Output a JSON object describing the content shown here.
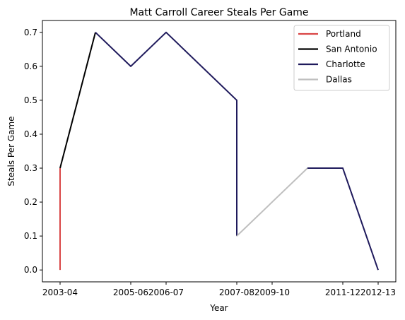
{
  "chart_data": {
    "type": "line",
    "title": "Matt Carroll  Career Steals Per Game",
    "xlabel": "Year",
    "ylabel": "Steals Per Game",
    "x_tick_labels": [
      "2003-04",
      "2005-06",
      "2006-07",
      "2007-08",
      "2009-10",
      "2011-12",
      "2012-13"
    ],
    "x_tick_positions": [
      0,
      2,
      3,
      5,
      6,
      8,
      9
    ],
    "y_ticks": [
      0.0,
      0.1,
      0.2,
      0.3,
      0.4,
      0.5,
      0.6,
      0.7
    ],
    "y_tick_labels": [
      "0.0",
      "0.1",
      "0.2",
      "0.3",
      "0.4",
      "0.5",
      "0.6",
      "0.7"
    ],
    "xlim": [
      -0.5,
      9.5
    ],
    "ylim": [
      -0.035,
      0.735
    ],
    "grid": false,
    "legend_position": "top-right",
    "series": [
      {
        "name": "Portland",
        "color": "#d94545",
        "points": [
          [
            0,
            0.0
          ],
          [
            0,
            0.3
          ]
        ]
      },
      {
        "name": "San Antonio",
        "color": "#000000",
        "points": [
          [
            0,
            0.3
          ],
          [
            1,
            0.7
          ]
        ]
      },
      {
        "name": "Charlotte",
        "color": "#1f1a5c",
        "points": [
          [
            1,
            0.7
          ],
          [
            2,
            0.6
          ],
          [
            3,
            0.7
          ],
          [
            5,
            0.5
          ],
          [
            5,
            0.1
          ]
        ]
      },
      {
        "name": "Dallas",
        "color": "#bfbfbf",
        "points": [
          [
            5,
            0.1
          ],
          [
            7,
            0.3
          ]
        ]
      },
      {
        "name": "Charlotte",
        "color": "#1f1a5c",
        "legend": false,
        "points": [
          [
            7,
            0.3
          ],
          [
            8,
            0.3
          ],
          [
            9,
            0.0
          ]
        ]
      }
    ]
  }
}
